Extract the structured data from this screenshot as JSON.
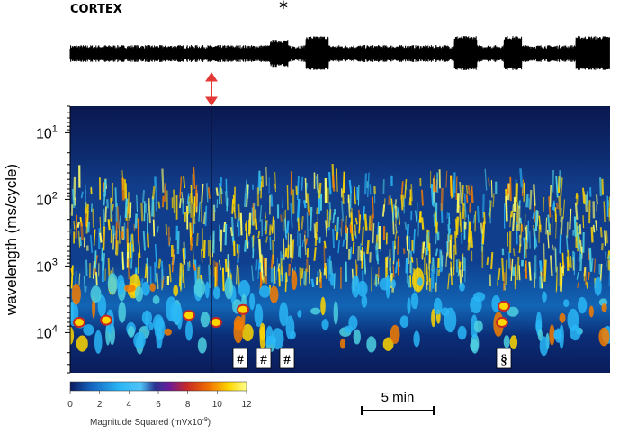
{
  "chart_data": {
    "type": "heatmap",
    "trace_label": "CORTEX",
    "ylabel": "wavelength (ms/cycle)",
    "y_scale": "log",
    "y_ticks": [
      {
        "value": 10,
        "base": "10",
        "exp": "1"
      },
      {
        "value": 100,
        "base": "10",
        "exp": "2"
      },
      {
        "value": 1000,
        "base": "10",
        "exp": "3"
      },
      {
        "value": 10000,
        "base": "10",
        "exp": "4"
      }
    ],
    "ylim": [
      4,
      40000
    ],
    "colorbar": {
      "label": "Magnitude Squared (mVx10",
      "label_exp": "-9",
      "label_close": ")",
      "ticks": [
        "0",
        "2",
        "4",
        "6",
        "8",
        "10",
        "12"
      ],
      "range": [
        0,
        12
      ],
      "colors": [
        "#0a1a5c",
        "#1565c0",
        "#29b6f6",
        "#4dd0e1",
        "#1a237e",
        "#7b1fa2",
        "#c62828",
        "#f57c00",
        "#ffd600",
        "#ffff66"
      ]
    },
    "time_scale_bar": "5 min",
    "event_marker": "*",
    "event_markers": [
      "#",
      "#",
      "#",
      "§"
    ],
    "dominant_band_ms_per_cycle": 400
  }
}
